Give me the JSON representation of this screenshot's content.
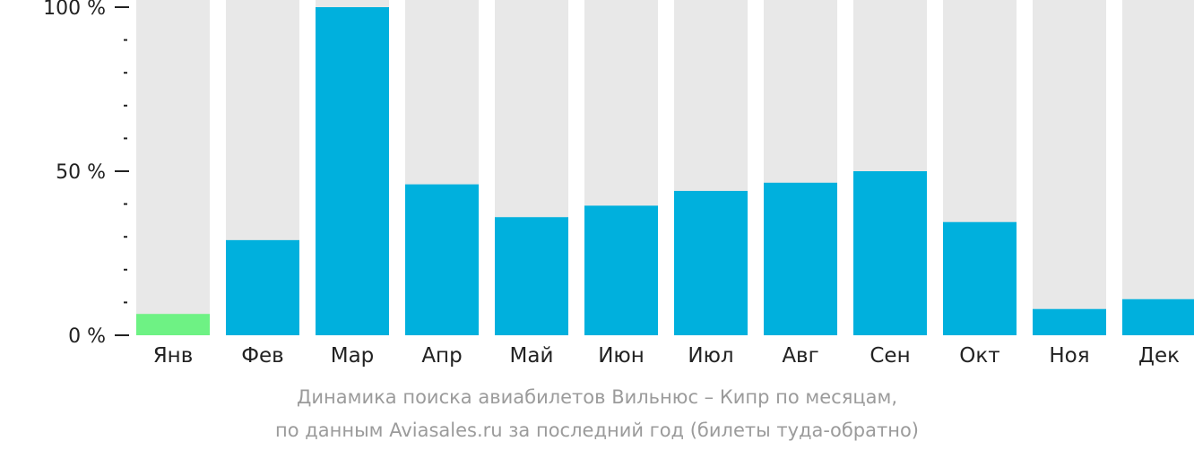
{
  "chart_data": {
    "type": "bar",
    "categories": [
      "Янв",
      "Фев",
      "Мар",
      "Апр",
      "Май",
      "Июн",
      "Июл",
      "Авг",
      "Сен",
      "Окт",
      "Ноя",
      "Дек"
    ],
    "values": [
      6.5,
      29,
      100,
      46,
      36,
      39.5,
      44,
      46.5,
      50,
      34.5,
      8,
      11
    ],
    "ylim": [
      0,
      100
    ],
    "y_ticks": [
      {
        "value": 0,
        "label": "0 %"
      },
      {
        "value": 50,
        "label": "50 %"
      },
      {
        "value": 100,
        "label": "100 %"
      }
    ],
    "minor_tick_step": 10,
    "grid": false,
    "legend": "none",
    "highlight_index": 0,
    "colors": {
      "bar": "#00b0dd",
      "highlight": "#6ef284",
      "track": "#e8e8e8",
      "axis": "#222222",
      "tick_label": "#222222",
      "category_label": "#222222"
    }
  },
  "caption": {
    "line1": "Динамика поиска авиабилетов Вильнюс – Кипр по месяцам,",
    "line2": "по данным Aviasales.ru за последний год (билеты туда-обратно)"
  }
}
